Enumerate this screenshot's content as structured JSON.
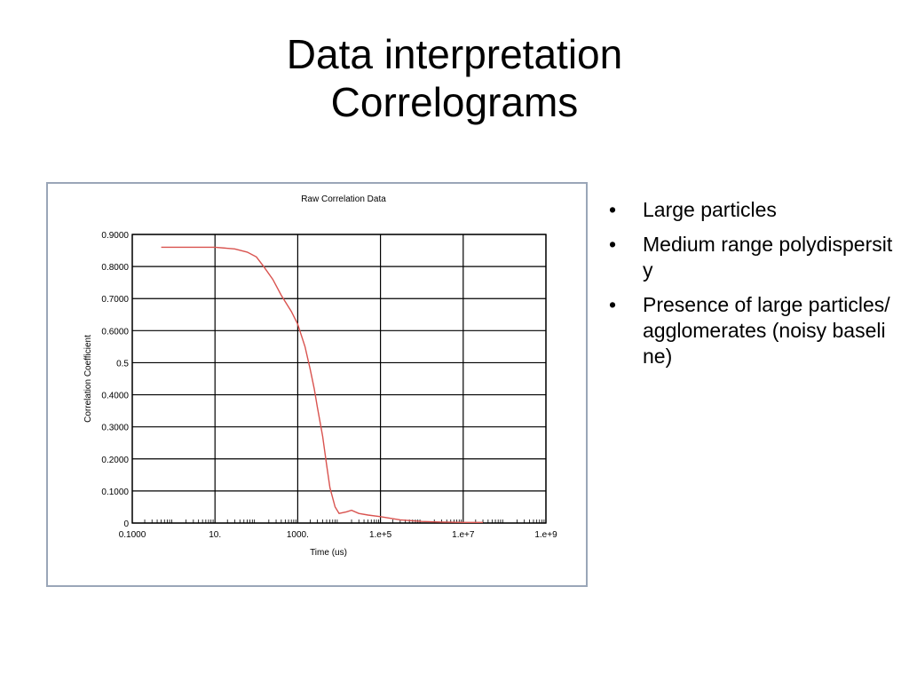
{
  "slide": {
    "title_line1": "Data interpretation",
    "title_line2": "Correlograms"
  },
  "bullets": [
    {
      "marker": "•",
      "text": "Large particles"
    },
    {
      "marker": "•",
      "text": "Medium range polydispersity"
    },
    {
      "marker": "•",
      "text": "Presence of large particles/agglomerates (noisy baseline)"
    }
  ],
  "chart_data": {
    "type": "line",
    "title": "Raw Correlation Data",
    "xlabel": "Time (us)",
    "ylabel": "Correlation Coefficient",
    "x_scale": "log",
    "xlim": [
      0.1,
      1000000000
    ],
    "ylim": [
      0,
      0.9
    ],
    "grid": true,
    "x_tick_labels": [
      "0.1000",
      "10.",
      "1000.",
      "1.e+5",
      "1.e+7",
      "1.e+9"
    ],
    "x_tick_values": [
      0.1,
      10,
      1000,
      100000,
      10000000,
      1000000000
    ],
    "y_tick_labels": [
      "0",
      "0.1000",
      "0.2000",
      "0.3000",
      "0.4000",
      "0.5",
      "0.6000",
      "0.7000",
      "0.8000",
      "0.9000"
    ],
    "y_tick_values": [
      0,
      0.1,
      0.2,
      0.3,
      0.4,
      0.5,
      0.6,
      0.7,
      0.8,
      0.9
    ],
    "series_color": "#d9534f",
    "series": [
      {
        "x": [
          0.5,
          2,
          10,
          30,
          60,
          100,
          150,
          250,
          400,
          700,
          1000,
          1500,
          2000,
          2500,
          3000,
          4000,
          5000,
          6000,
          8000,
          10000,
          15000,
          20000,
          30000,
          50000,
          100000,
          300000,
          1000000,
          3000000,
          10000000,
          30000000
        ],
        "y": [
          0.86,
          0.86,
          0.86,
          0.855,
          0.845,
          0.83,
          0.8,
          0.76,
          0.71,
          0.66,
          0.62,
          0.55,
          0.48,
          0.42,
          0.36,
          0.27,
          0.18,
          0.11,
          0.05,
          0.03,
          0.035,
          0.04,
          0.03,
          0.025,
          0.02,
          0.01,
          0.005,
          0.003,
          0.002,
          0.002
        ]
      }
    ]
  }
}
